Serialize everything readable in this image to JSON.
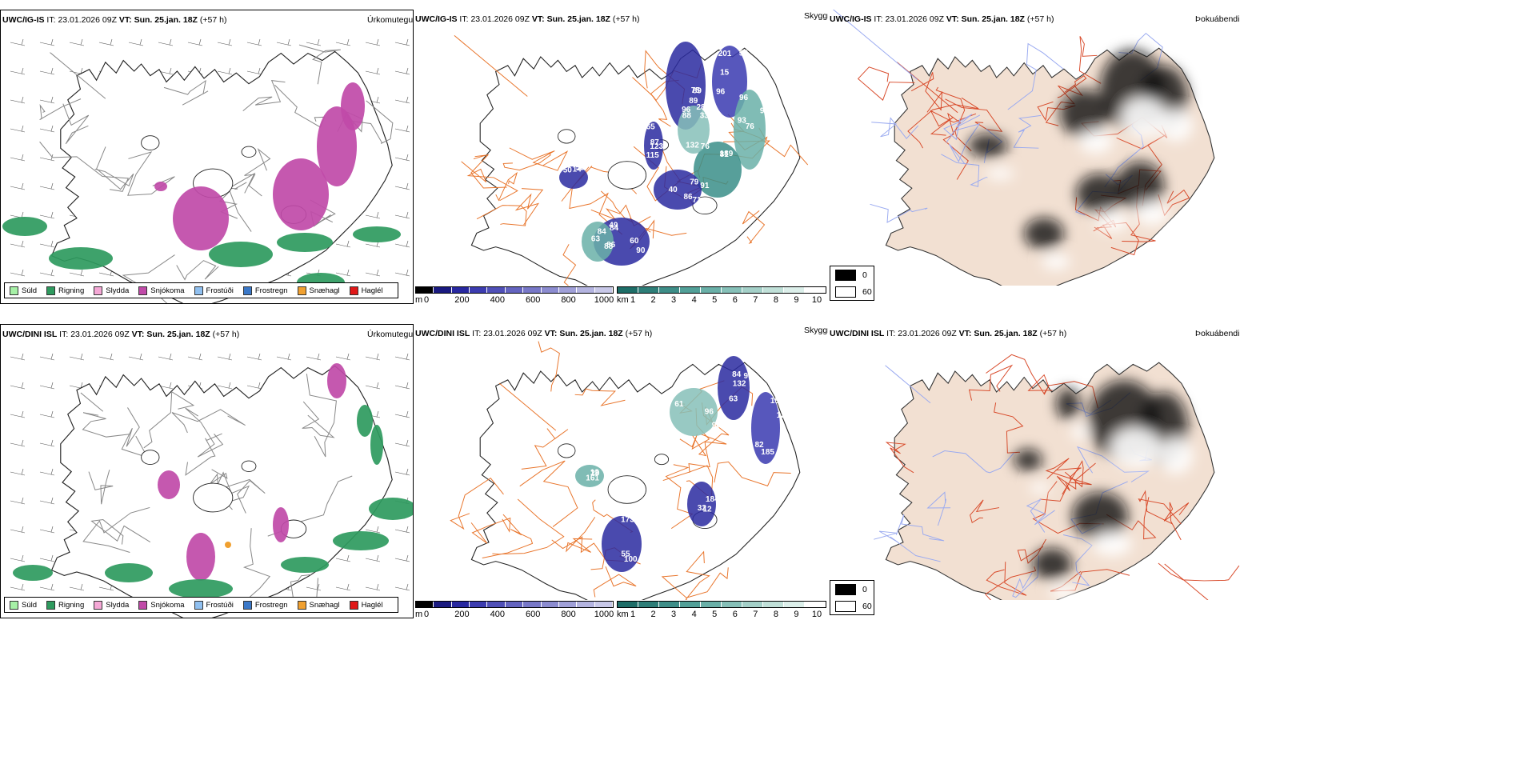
{
  "rows": [
    {
      "model": "UWC/IG-IS",
      "it_label": "IT:",
      "it_value": "23.01.2026 09Z",
      "vt_label": "VT:",
      "vt_value": "Sun. 25.jan. 18Z",
      "lead": "(+57 h)",
      "precip_title": "Úrkomutegund",
      "vis_title": "Skyggni",
      "fog_title": "Þokuábendi",
      "vis_labels": [
        "28",
        "201",
        "76",
        "76",
        "71",
        "88",
        "84",
        "14",
        "115",
        "96",
        "89",
        "55",
        "95",
        "189",
        "86",
        "60",
        "49",
        "56",
        "123",
        "88",
        "75",
        "15",
        "96",
        "81",
        "79",
        "84",
        "86",
        "50",
        "65",
        "33",
        "89",
        "96",
        "93",
        "91",
        "40",
        "90",
        "63",
        "53",
        "87",
        "132"
      ]
    },
    {
      "model": "UWC/DINI ISL",
      "it_label": "IT:",
      "it_value": "23.01.2026 09Z",
      "vt_label": "VT:",
      "vt_value": "Sun. 25.jan. 18Z",
      "lead": "(+57 h)",
      "precip_title": "Úrkomutegund",
      "vis_title": "Skyggni",
      "fog_title": "Þokuábendi",
      "vis_labels": [
        "132",
        "129",
        "100",
        "32",
        "12",
        "96",
        "90",
        "15",
        "55",
        "184",
        "29",
        "61",
        "84",
        "185",
        "173",
        "12",
        "161",
        "90",
        "63",
        "82"
      ]
    }
  ],
  "precip_legend": [
    {
      "label": "Súld",
      "color": "#a6f0a6"
    },
    {
      "label": "Rigning",
      "color": "#2e9a5e"
    },
    {
      "label": "Slydda",
      "color": "#f5a8d6"
    },
    {
      "label": "Snjókoma",
      "color": "#c04aa8"
    },
    {
      "label": "Frostúði",
      "color": "#90c0f0"
    },
    {
      "label": "Frostregn",
      "color": "#3a78c8"
    },
    {
      "label": "Snæhagl",
      "color": "#f0a030"
    },
    {
      "label": "Haglél",
      "color": "#e01818"
    }
  ],
  "ceiling_bar": {
    "unit": "m",
    "ticks": [
      "0",
      "200",
      "400",
      "600",
      "800",
      "1000"
    ],
    "colors": [
      "#000000",
      "#1a1a80",
      "#2828a0",
      "#3c3cb0",
      "#5050b8",
      "#6464c0",
      "#7878c8",
      "#8c8cd0",
      "#a0a0d8",
      "#b4b4e0",
      "#c8c8e8"
    ]
  },
  "vis_bar": {
    "unit": "km",
    "ticks": [
      "1",
      "2",
      "3",
      "4",
      "5",
      "6",
      "7",
      "8",
      "9",
      "10"
    ],
    "colors": [
      "#1e6e68",
      "#2e7e78",
      "#3e8e88",
      "#52a098",
      "#6ab0a8",
      "#86c0b8",
      "#a4d0c8",
      "#c0e0d8",
      "#dcefea",
      "#ffffff"
    ]
  },
  "fog_legend": [
    {
      "label": "0",
      "color": "#000000"
    },
    {
      "label": "60",
      "color": "#ffffff"
    }
  ],
  "colors": {
    "land_fog": "#f2e0d2",
    "roads": "#e8742a",
    "rivers": "#9aaaf0",
    "rain": "#2e9a5e",
    "snow": "#c04aa8"
  }
}
